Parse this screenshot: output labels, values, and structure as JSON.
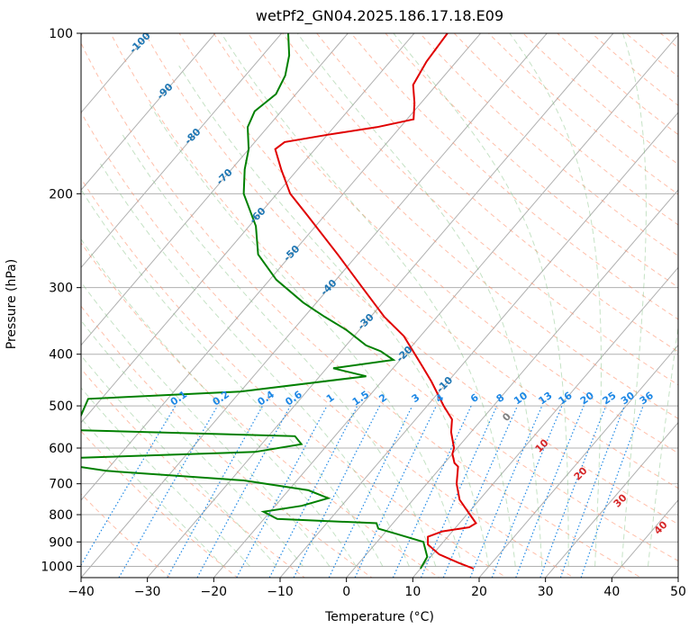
{
  "chart_data": {
    "type": "line",
    "title": "wetPf2_GN04.2025.186.17.18.E09",
    "xlabel": "Temperature (°C)",
    "ylabel": "Pressure (hPa)",
    "xlim": [
      -40,
      50
    ],
    "ylim": [
      1050,
      100
    ],
    "y_scale": "log",
    "skew": true,
    "grid": true,
    "x_ticks": [
      -40,
      -30,
      -20,
      -10,
      0,
      10,
      20,
      30,
      40,
      50
    ],
    "y_ticks": [
      100,
      200,
      300,
      400,
      500,
      600,
      700,
      800,
      900,
      1000
    ],
    "series": [
      {
        "role": "temperature",
        "color": "#e00000",
        "points": [
          {
            "p": 1010,
            "t": 18.0
          },
          {
            "p": 985,
            "t": 15.0
          },
          {
            "p": 950,
            "t": 11.0
          },
          {
            "p": 910,
            "t": 8.0
          },
          {
            "p": 880,
            "t": 7.0
          },
          {
            "p": 860,
            "t": 8.5
          },
          {
            "p": 845,
            "t": 12.0
          },
          {
            "p": 830,
            "t": 12.5
          },
          {
            "p": 800,
            "t": 10.5
          },
          {
            "p": 750,
            "t": 7.0
          },
          {
            "p": 700,
            "t": 4.5
          },
          {
            "p": 650,
            "t": 2.5
          },
          {
            "p": 640,
            "t": 1.5
          },
          {
            "p": 615,
            "t": 0.0
          },
          {
            "p": 600,
            "t": -0.5
          },
          {
            "p": 560,
            "t": -3.0
          },
          {
            "p": 530,
            "t": -4.5
          },
          {
            "p": 500,
            "t": -7.5
          },
          {
            "p": 450,
            "t": -12.5
          },
          {
            "p": 420,
            "t": -16.0
          },
          {
            "p": 400,
            "t": -18.5
          },
          {
            "p": 370,
            "t": -22.5
          },
          {
            "p": 340,
            "t": -28.0
          },
          {
            "p": 300,
            "t": -35.0
          },
          {
            "p": 260,
            "t": -43.0
          },
          {
            "p": 220,
            "t": -52.5
          },
          {
            "p": 200,
            "t": -58.0
          },
          {
            "p": 180,
            "t": -62.5
          },
          {
            "p": 165,
            "t": -66.0
          },
          {
            "p": 160,
            "t": -65.5
          },
          {
            "p": 155,
            "t": -60.0
          },
          {
            "p": 150,
            "t": -53.5
          },
          {
            "p": 145,
            "t": -49.0
          },
          {
            "p": 135,
            "t": -51.0
          },
          {
            "p": 125,
            "t": -53.5
          },
          {
            "p": 113,
            "t": -54.5
          },
          {
            "p": 100,
            "t": -55.0
          }
        ]
      },
      {
        "role": "dewpoint",
        "color": "#008000",
        "points": [
          {
            "p": 1010,
            "t": 10.0
          },
          {
            "p": 960,
            "t": 9.5
          },
          {
            "p": 900,
            "t": 7.0
          },
          {
            "p": 870,
            "t": 2.0
          },
          {
            "p": 850,
            "t": -1.5
          },
          {
            "p": 830,
            "t": -2.5
          },
          {
            "p": 815,
            "t": -18.0
          },
          {
            "p": 790,
            "t": -21.0
          },
          {
            "p": 770,
            "t": -16.0
          },
          {
            "p": 745,
            "t": -13.0
          },
          {
            "p": 720,
            "t": -17.0
          },
          {
            "p": 690,
            "t": -28.0
          },
          {
            "p": 662,
            "t": -50.0
          },
          {
            "p": 630,
            "t": -63.0
          },
          {
            "p": 610,
            "t": -30.0
          },
          {
            "p": 590,
            "t": -24.0
          },
          {
            "p": 570,
            "t": -26.0
          },
          {
            "p": 555,
            "t": -60.0
          },
          {
            "p": 485,
            "t": -62.0
          },
          {
            "p": 470,
            "t": -40.0
          },
          {
            "p": 440,
            "t": -23.0
          },
          {
            "p": 425,
            "t": -29.0
          },
          {
            "p": 410,
            "t": -21.0
          },
          {
            "p": 395,
            "t": -24.0
          },
          {
            "p": 385,
            "t": -27.0
          },
          {
            "p": 360,
            "t": -32.0
          },
          {
            "p": 340,
            "t": -37.0
          },
          {
            "p": 320,
            "t": -42.0
          },
          {
            "p": 290,
            "t": -49.0
          },
          {
            "p": 260,
            "t": -55.0
          },
          {
            "p": 230,
            "t": -59.0
          },
          {
            "p": 200,
            "t": -65.0
          },
          {
            "p": 180,
            "t": -68.0
          },
          {
            "p": 165,
            "t": -70.0
          },
          {
            "p": 150,
            "t": -73.0
          },
          {
            "p": 140,
            "t": -74.0
          },
          {
            "p": 130,
            "t": -73.0
          },
          {
            "p": 120,
            "t": -74.0
          },
          {
            "p": 110,
            "t": -76.0
          },
          {
            "p": 100,
            "t": -79.0
          }
        ]
      }
    ],
    "isotherm_labels": [
      -100,
      -90,
      -80,
      -70,
      -60,
      -50,
      -40,
      -30,
      -20,
      -10
    ],
    "mixing_ratio_labels": [
      "0.1",
      "0.2",
      "0.4",
      "0.6",
      "1",
      "1.5",
      "2",
      "3",
      "4",
      "6",
      "8",
      "10",
      "13",
      "16",
      "20",
      "25",
      "30",
      "36"
    ],
    "moist_adiabat_labels": [
      "0",
      "10",
      "20",
      "30",
      "40"
    ],
    "colors": {
      "isotherm_label": "#1f77b4",
      "mixing_ratio": "#1e88e5",
      "moist_adiabat_label": "#d62728",
      "zero_label": "#808080",
      "dry_adiabat": "#ff8a65",
      "moist_adiabat": "#7fbf7f",
      "grid": "#b0b0b0"
    }
  }
}
